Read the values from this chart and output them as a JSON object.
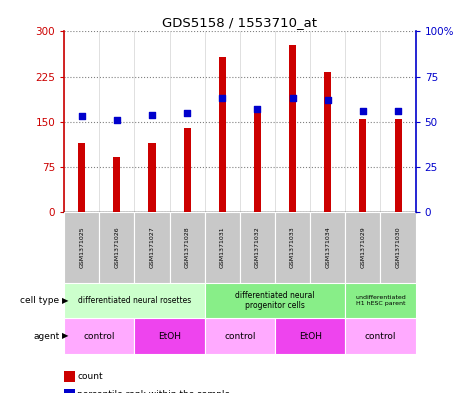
{
  "title": "GDS5158 / 1553710_at",
  "samples": [
    "GSM1371025",
    "GSM1371026",
    "GSM1371027",
    "GSM1371028",
    "GSM1371031",
    "GSM1371032",
    "GSM1371033",
    "GSM1371034",
    "GSM1371029",
    "GSM1371030"
  ],
  "counts": [
    115,
    92,
    115,
    140,
    258,
    175,
    278,
    232,
    155,
    155
  ],
  "percentile_ranks": [
    53,
    51,
    54,
    55,
    63,
    57,
    63,
    62,
    56,
    56
  ],
  "bar_color": "#cc0000",
  "dot_color": "#0000cc",
  "ylim_left": [
    0,
    300
  ],
  "ylim_right": [
    0,
    100
  ],
  "yticks_left": [
    0,
    75,
    150,
    225,
    300
  ],
  "yticks_right": [
    0,
    25,
    50,
    75,
    100
  ],
  "ytick_labels_right": [
    "0",
    "25",
    "50",
    "75",
    "100%"
  ],
  "bar_width": 0.2,
  "cell_type_groups": [
    {
      "label": "differentiated neural rosettes",
      "start": 0,
      "end": 4,
      "color": "#ccffcc"
    },
    {
      "label": "differentiated neural\nprogenitor cells",
      "start": 4,
      "end": 8,
      "color": "#88ee88"
    },
    {
      "label": "undifferentiated\nH1 hESC parent",
      "start": 8,
      "end": 10,
      "color": "#88ee88"
    }
  ],
  "agent_groups": [
    {
      "label": "control",
      "start": 0,
      "end": 2,
      "color": "#ffaaff"
    },
    {
      "label": "EtOH",
      "start": 2,
      "end": 4,
      "color": "#ee44ee"
    },
    {
      "label": "control",
      "start": 4,
      "end": 6,
      "color": "#ffaaff"
    },
    {
      "label": "EtOH",
      "start": 6,
      "end": 8,
      "color": "#ee44ee"
    },
    {
      "label": "control",
      "start": 8,
      "end": 10,
      "color": "#ffaaff"
    }
  ],
  "sample_bg_color": "#c8c8c8",
  "legend_count_color": "#cc0000",
  "legend_rank_color": "#0000cc",
  "grid_color": "gray",
  "spine_bottom_color": "black"
}
